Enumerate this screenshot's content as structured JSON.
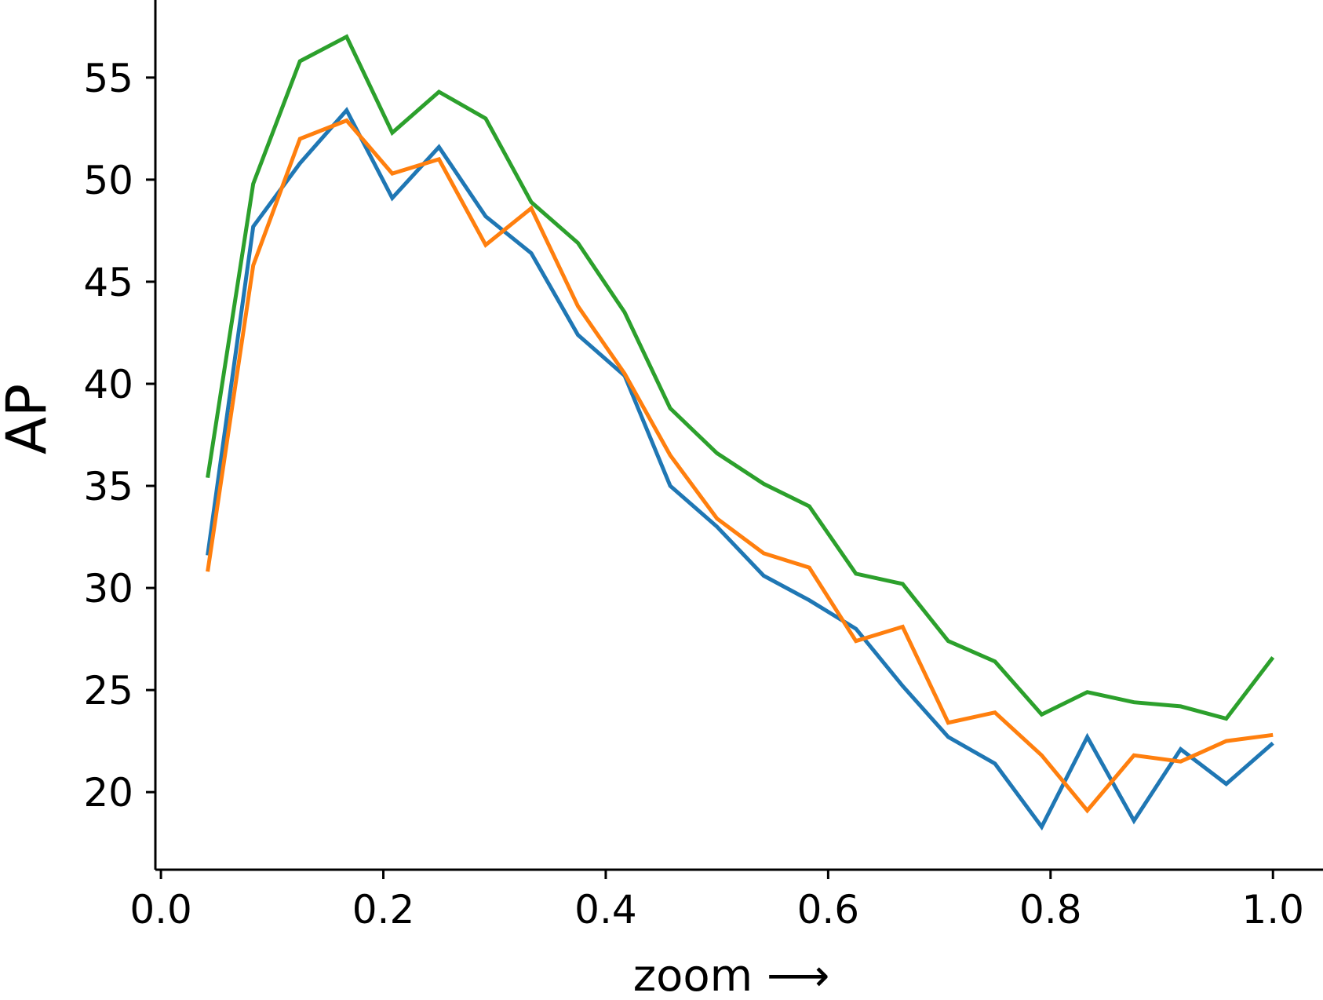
{
  "chart_data": {
    "type": "line",
    "xlabel": "zoom ⟶",
    "ylabel": "AP",
    "xlim": [
      -0.005,
      1.045
    ],
    "ylim": [
      16.2,
      58.8
    ],
    "x_ticks": [
      "0.0",
      "0.2",
      "0.4",
      "0.6",
      "0.8",
      "1.0"
    ],
    "y_ticks": [
      "20",
      "25",
      "30",
      "35",
      "40",
      "45",
      "50",
      "55"
    ],
    "grid": false,
    "legend": "none",
    "x": [
      0.042,
      0.083,
      0.125,
      0.167,
      0.208,
      0.25,
      0.292,
      0.333,
      0.375,
      0.417,
      0.458,
      0.5,
      0.542,
      0.583,
      0.625,
      0.667,
      0.708,
      0.75,
      0.792,
      0.833,
      0.875,
      0.917,
      0.958,
      1.0
    ],
    "series": [
      {
        "color": "#1f77b4",
        "values": [
          31.6,
          47.7,
          50.8,
          53.4,
          49.1,
          51.6,
          48.2,
          46.4,
          42.4,
          40.4,
          35.0,
          33.0,
          30.6,
          29.4,
          28.0,
          25.2,
          22.7,
          21.4,
          18.3,
          22.7,
          18.6,
          22.1,
          20.4,
          22.4
        ]
      },
      {
        "color": "#ff7f0e",
        "values": [
          30.8,
          45.8,
          52.0,
          52.9,
          50.3,
          51.0,
          46.8,
          48.6,
          43.8,
          40.5,
          36.5,
          33.4,
          31.7,
          31.0,
          27.4,
          28.1,
          23.4,
          23.9,
          21.8,
          19.1,
          21.8,
          21.5,
          22.5,
          22.8
        ]
      },
      {
        "color": "#2ca02c",
        "values": [
          35.4,
          49.8,
          55.8,
          57.0,
          52.3,
          54.3,
          53.0,
          48.9,
          46.9,
          43.5,
          38.8,
          36.6,
          35.1,
          34.0,
          30.7,
          30.2,
          27.4,
          26.4,
          23.8,
          24.9,
          24.4,
          24.2,
          23.6,
          26.6
        ]
      }
    ]
  }
}
